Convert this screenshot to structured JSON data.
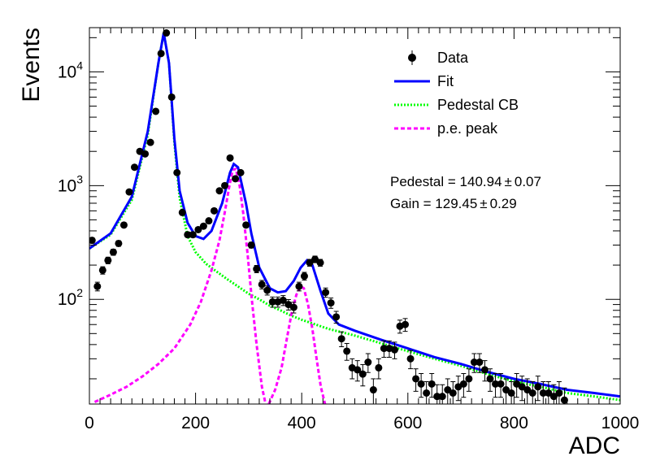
{
  "chart_data": {
    "type": "scatter",
    "xlabel": "ADC",
    "ylabel": "Events",
    "xlim": [
      0,
      1000
    ],
    "ylim": [
      12,
      24500
    ],
    "y_scale": "log",
    "grid": false,
    "x_ticks": [
      {
        "value": 0,
        "label": "0"
      },
      {
        "value": 200,
        "label": "200"
      },
      {
        "value": 400,
        "label": "400"
      },
      {
        "value": 600,
        "label": "600"
      },
      {
        "value": 800,
        "label": "800"
      },
      {
        "value": 1000,
        "label": "1000"
      }
    ],
    "y_ticks": [
      {
        "value": 100,
        "base": "10",
        "exp": "2"
      },
      {
        "value": 1000,
        "base": "10",
        "exp": "3"
      },
      {
        "value": 10000,
        "base": "10",
        "exp": "4"
      }
    ],
    "legend": {
      "placement": "top-right",
      "entries": [
        {
          "label": "Data",
          "style": "marker",
          "color": "#000000"
        },
        {
          "label": "Fit",
          "style": "solid",
          "color": "#0000ff"
        },
        {
          "label": "Pedestal CB",
          "style": "dotted",
          "color": "#00ff00"
        },
        {
          "label": "p.e. peak",
          "style": "dashed",
          "color": "#ff00ff"
        }
      ]
    },
    "annotations": {
      "pedestal": {
        "label": "Pedestal = 140.94",
        "pm": "±",
        "error": "0.07"
      },
      "gain": {
        "label": "Gain = 129.45",
        "pm": "±",
        "error": "0.29"
      }
    },
    "series": [
      {
        "name": "Data",
        "kind": "points",
        "color": "#000000",
        "points": [
          [
            5,
            330
          ],
          [
            15,
            130
          ],
          [
            25,
            180
          ],
          [
            35,
            220
          ],
          [
            45,
            260
          ],
          [
            55,
            310
          ],
          [
            65,
            450
          ],
          [
            75,
            880
          ],
          [
            85,
            1450
          ],
          [
            95,
            2000
          ],
          [
            105,
            1900
          ],
          [
            115,
            2400
          ],
          [
            125,
            4500
          ],
          [
            135,
            14500
          ],
          [
            145,
            22000
          ],
          [
            155,
            6000
          ],
          [
            165,
            1300
          ],
          [
            175,
            580
          ],
          [
            185,
            370
          ],
          [
            195,
            370
          ],
          [
            205,
            410
          ],
          [
            215,
            440
          ],
          [
            225,
            490
          ],
          [
            235,
            600
          ],
          [
            245,
            900
          ],
          [
            255,
            1000
          ],
          [
            265,
            1750
          ],
          [
            275,
            1150
          ],
          [
            285,
            1300
          ],
          [
            295,
            450
          ],
          [
            305,
            300
          ],
          [
            315,
            185
          ],
          [
            325,
            135
          ],
          [
            335,
            120
          ],
          [
            345,
            95
          ],
          [
            355,
            95
          ],
          [
            365,
            98
          ],
          [
            375,
            90
          ],
          [
            385,
            85
          ],
          [
            395,
            130
          ],
          [
            405,
            160
          ],
          [
            415,
            210
          ],
          [
            425,
            225
          ],
          [
            435,
            210
          ],
          [
            445,
            115
          ],
          [
            455,
            93
          ],
          [
            465,
            70
          ],
          [
            475,
            45
          ],
          [
            485,
            35
          ],
          [
            495,
            25
          ],
          [
            505,
            24
          ],
          [
            515,
            22
          ],
          [
            525,
            28
          ],
          [
            535,
            16
          ],
          [
            545,
            25
          ],
          [
            555,
            37
          ],
          [
            565,
            37
          ],
          [
            575,
            36
          ],
          [
            585,
            58
          ],
          [
            595,
            60
          ],
          [
            605,
            30
          ],
          [
            615,
            20
          ],
          [
            625,
            18
          ],
          [
            635,
            15
          ],
          [
            645,
            18
          ],
          [
            655,
            14
          ],
          [
            665,
            14
          ],
          [
            675,
            16
          ],
          [
            685,
            15
          ],
          [
            695,
            17
          ],
          [
            705,
            18
          ],
          [
            715,
            20
          ],
          [
            725,
            28
          ],
          [
            735,
            28
          ],
          [
            745,
            24
          ],
          [
            755,
            20
          ],
          [
            765,
            18
          ],
          [
            775,
            18
          ],
          [
            785,
            16
          ],
          [
            795,
            15
          ],
          [
            805,
            18
          ],
          [
            815,
            17
          ],
          [
            825,
            16
          ],
          [
            835,
            15
          ],
          [
            845,
            17
          ],
          [
            855,
            15
          ],
          [
            865,
            15
          ],
          [
            875,
            14
          ],
          [
            885,
            15
          ],
          [
            895,
            13
          ]
        ]
      },
      {
        "name": "Fit",
        "kind": "line",
        "color": "#0000ff",
        "points": [
          [
            0,
            280
          ],
          [
            40,
            380
          ],
          [
            80,
            800
          ],
          [
            110,
            3000
          ],
          [
            130,
            12000
          ],
          [
            140,
            22000
          ],
          [
            150,
            12000
          ],
          [
            160,
            2600
          ],
          [
            170,
            900
          ],
          [
            185,
            470
          ],
          [
            200,
            360
          ],
          [
            215,
            340
          ],
          [
            230,
            400
          ],
          [
            250,
            700
          ],
          [
            265,
            1300
          ],
          [
            272,
            1550
          ],
          [
            280,
            1450
          ],
          [
            295,
            700
          ],
          [
            305,
            380
          ],
          [
            320,
            190
          ],
          [
            340,
            125
          ],
          [
            355,
            115
          ],
          [
            370,
            118
          ],
          [
            385,
            145
          ],
          [
            398,
            190
          ],
          [
            410,
            220
          ],
          [
            420,
            200
          ],
          [
            435,
            120
          ],
          [
            450,
            75
          ],
          [
            470,
            60
          ],
          [
            500,
            53
          ],
          [
            550,
            44
          ],
          [
            600,
            37
          ],
          [
            650,
            31
          ],
          [
            700,
            27
          ],
          [
            750,
            23
          ],
          [
            800,
            20
          ],
          [
            850,
            18
          ],
          [
            900,
            16
          ],
          [
            950,
            15
          ],
          [
            1000,
            14
          ]
        ]
      },
      {
        "name": "Pedestal CB",
        "kind": "line",
        "color": "#00ff00",
        "points": [
          [
            0,
            280
          ],
          [
            40,
            370
          ],
          [
            80,
            750
          ],
          [
            110,
            2800
          ],
          [
            130,
            12000
          ],
          [
            140,
            22000
          ],
          [
            150,
            12000
          ],
          [
            160,
            2400
          ],
          [
            170,
            780
          ],
          [
            185,
            360
          ],
          [
            200,
            260
          ],
          [
            220,
            205
          ],
          [
            240,
            175
          ],
          [
            260,
            150
          ],
          [
            280,
            130
          ],
          [
            300,
            112
          ],
          [
            320,
            100
          ],
          [
            340,
            88
          ],
          [
            360,
            80
          ],
          [
            380,
            72
          ],
          [
            400,
            66
          ],
          [
            450,
            55
          ],
          [
            500,
            48
          ],
          [
            550,
            41
          ],
          [
            600,
            35
          ],
          [
            650,
            30
          ],
          [
            700,
            26
          ],
          [
            750,
            22
          ],
          [
            800,
            19
          ],
          [
            850,
            17
          ],
          [
            900,
            15
          ],
          [
            950,
            14
          ],
          [
            1000,
            13
          ]
        ]
      },
      {
        "name": "p.e. peak 1",
        "kind": "line",
        "color": "#ff00ff",
        "points": [
          [
            10,
            12.5
          ],
          [
            40,
            14.5
          ],
          [
            70,
            17
          ],
          [
            100,
            21
          ],
          [
            130,
            27
          ],
          [
            160,
            37
          ],
          [
            190,
            60
          ],
          [
            210,
            95
          ],
          [
            230,
            180
          ],
          [
            245,
            330
          ],
          [
            255,
            580
          ],
          [
            263,
            950
          ],
          [
            270,
            1380
          ],
          [
            276,
            1400
          ],
          [
            283,
            1000
          ],
          [
            290,
            560
          ],
          [
            298,
            250
          ],
          [
            306,
            100
          ],
          [
            315,
            40
          ],
          [
            325,
            17
          ],
          [
            332,
            12
          ]
        ]
      },
      {
        "name": "p.e. peak 2",
        "kind": "line",
        "color": "#ff00ff",
        "points": [
          [
            338,
            12
          ],
          [
            350,
            16
          ],
          [
            362,
            25
          ],
          [
            372,
            45
          ],
          [
            382,
            80
          ],
          [
            390,
            110
          ],
          [
            398,
            130
          ],
          [
            404,
            125
          ],
          [
            412,
            90
          ],
          [
            420,
            55
          ],
          [
            428,
            30
          ],
          [
            436,
            17
          ],
          [
            444,
            12
          ]
        ]
      }
    ]
  }
}
